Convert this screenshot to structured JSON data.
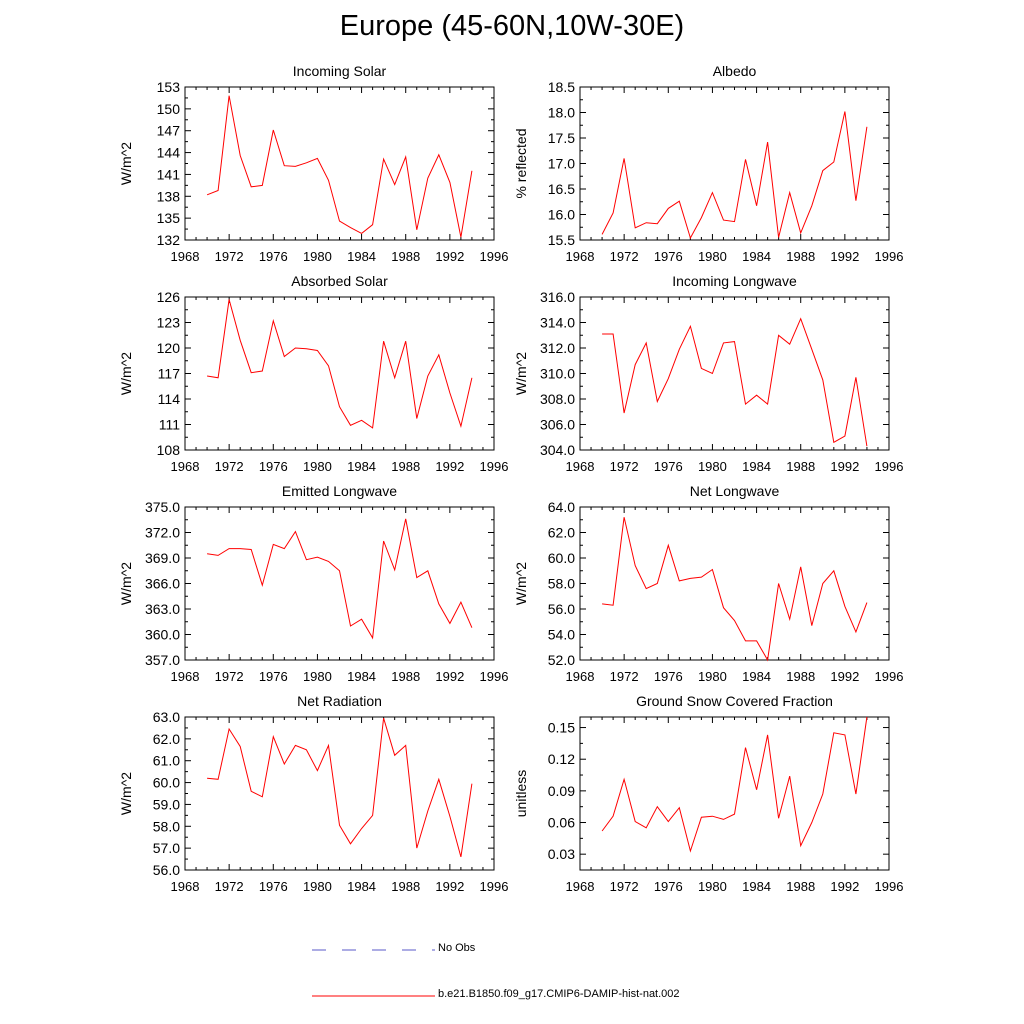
{
  "page_title": "Europe (45-60N,10W-30E)",
  "legend": {
    "obs_label": "No Obs",
    "obs_color": "#5a5ac8",
    "model_label": "b.e21.B1850.f09_g17.CMIP6-DAMIP-hist-nat.002",
    "model_color": "#ff0000"
  },
  "chart_data": [
    {
      "type": "line",
      "title": "Incoming Solar",
      "xlabel": "",
      "ylabel": "W/m^2",
      "xlim": [
        1968,
        1996
      ],
      "ylim": [
        132,
        153
      ],
      "x_ticks": [
        "1968",
        "1972",
        "1976",
        "1980",
        "1984",
        "1988",
        "1992",
        "1996"
      ],
      "y_ticks": [
        "132",
        "135",
        "138",
        "141",
        "144",
        "147",
        "150",
        "153"
      ],
      "x": [
        1970,
        1971,
        1972,
        1973,
        1974,
        1975,
        1976,
        1977,
        1978,
        1979,
        1980,
        1981,
        1982,
        1983,
        1984,
        1985,
        1986,
        1987,
        1988,
        1989,
        1990,
        1991,
        1992,
        1993,
        1994
      ],
      "values": [
        138.2,
        138.8,
        151.8,
        143.6,
        139.3,
        139.5,
        147.1,
        142.2,
        142.1,
        142.6,
        143.2,
        140.2,
        134.6,
        133.7,
        132.9,
        134.1,
        143.1,
        139.6,
        143.4,
        133.4,
        140.5,
        143.7,
        139.9,
        132.4,
        141.5
      ]
    },
    {
      "type": "line",
      "title": "Albedo",
      "xlabel": "",
      "ylabel": "% reflected",
      "xlim": [
        1968,
        1996
      ],
      "ylim": [
        15.5,
        18.5
      ],
      "x_ticks": [
        "1968",
        "1972",
        "1976",
        "1980",
        "1984",
        "1988",
        "1992",
        "1996"
      ],
      "y_ticks": [
        "15.5",
        "16.0",
        "16.5",
        "17.0",
        "17.5",
        "18.0",
        "18.5"
      ],
      "x": [
        1970,
        1971,
        1972,
        1973,
        1974,
        1975,
        1976,
        1977,
        1978,
        1979,
        1980,
        1981,
        1982,
        1983,
        1984,
        1985,
        1986,
        1987,
        1988,
        1989,
        1990,
        1991,
        1992,
        1993,
        1994
      ],
      "values": [
        15.61,
        16.03,
        17.1,
        15.74,
        15.84,
        15.82,
        16.12,
        16.26,
        15.54,
        15.94,
        16.43,
        15.89,
        15.86,
        17.08,
        16.17,
        17.42,
        15.55,
        16.43,
        15.64,
        16.17,
        16.86,
        17.03,
        18.02,
        16.27,
        17.72
      ]
    },
    {
      "type": "line",
      "title": "Absorbed Solar",
      "xlabel": "",
      "ylabel": "W/m^2",
      "xlim": [
        1968,
        1996
      ],
      "ylim": [
        108,
        126
      ],
      "x_ticks": [
        "1968",
        "1972",
        "1976",
        "1980",
        "1984",
        "1988",
        "1992",
        "1996"
      ],
      "y_ticks": [
        "108",
        "111",
        "114",
        "117",
        "120",
        "123",
        "126"
      ],
      "x": [
        1970,
        1971,
        1972,
        1973,
        1974,
        1975,
        1976,
        1977,
        1978,
        1979,
        1980,
        1981,
        1982,
        1983,
        1984,
        1985,
        1986,
        1987,
        1988,
        1989,
        1990,
        1991,
        1992,
        1993,
        1994
      ],
      "values": [
        116.7,
        116.5,
        125.7,
        120.9,
        117.1,
        117.3,
        123.2,
        119.0,
        120.0,
        119.9,
        119.7,
        117.9,
        113.1,
        110.9,
        111.5,
        110.6,
        120.8,
        116.5,
        120.8,
        111.7,
        116.7,
        119.2,
        114.7,
        110.8,
        116.5
      ]
    },
    {
      "type": "line",
      "title": "Incoming Longwave",
      "xlabel": "",
      "ylabel": "W/m^2",
      "xlim": [
        1968,
        1996
      ],
      "ylim": [
        304.0,
        316.0
      ],
      "x_ticks": [
        "1968",
        "1972",
        "1976",
        "1980",
        "1984",
        "1988",
        "1992",
        "1996"
      ],
      "y_ticks": [
        "304.0",
        "306.0",
        "308.0",
        "310.0",
        "312.0",
        "314.0",
        "316.0"
      ],
      "x": [
        1970,
        1971,
        1972,
        1973,
        1974,
        1975,
        1976,
        1977,
        1978,
        1979,
        1980,
        1981,
        1982,
        1983,
        1984,
        1985,
        1986,
        1987,
        1988,
        1989,
        1990,
        1991,
        1992,
        1993,
        1994
      ],
      "values": [
        313.1,
        313.1,
        306.9,
        310.7,
        312.4,
        307.8,
        309.6,
        311.9,
        313.7,
        310.4,
        310.0,
        312.4,
        312.5,
        307.6,
        308.3,
        307.6,
        313.0,
        312.3,
        314.3,
        311.9,
        309.5,
        304.6,
        305.1,
        309.7,
        304.3
      ]
    },
    {
      "type": "line",
      "title": "Emitted Longwave",
      "xlabel": "",
      "ylabel": "W/m^2",
      "xlim": [
        1968,
        1996
      ],
      "ylim": [
        357.0,
        375.0
      ],
      "x_ticks": [
        "1968",
        "1972",
        "1976",
        "1980",
        "1984",
        "1988",
        "1992",
        "1996"
      ],
      "y_ticks": [
        "357.0",
        "360.0",
        "363.0",
        "366.0",
        "369.0",
        "372.0",
        "375.0"
      ],
      "x": [
        1970,
        1971,
        1972,
        1973,
        1974,
        1975,
        1976,
        1977,
        1978,
        1979,
        1980,
        1981,
        1982,
        1983,
        1984,
        1985,
        1986,
        1987,
        1988,
        1989,
        1990,
        1991,
        1992,
        1993,
        1994
      ],
      "values": [
        369.5,
        369.3,
        370.1,
        370.1,
        370.0,
        365.8,
        370.6,
        370.1,
        372.1,
        368.8,
        369.1,
        368.6,
        367.5,
        361.0,
        361.8,
        359.6,
        371.0,
        367.6,
        373.6,
        366.7,
        367.5,
        363.6,
        361.3,
        363.8,
        360.8
      ]
    },
    {
      "type": "line",
      "title": "Net Longwave",
      "xlabel": "",
      "ylabel": "W/m^2",
      "xlim": [
        1968,
        1996
      ],
      "ylim": [
        52.0,
        64.0
      ],
      "x_ticks": [
        "1968",
        "1972",
        "1976",
        "1980",
        "1984",
        "1988",
        "1992",
        "1996"
      ],
      "y_ticks": [
        "52.0",
        "54.0",
        "56.0",
        "58.0",
        "60.0",
        "62.0",
        "64.0"
      ],
      "x": [
        1970,
        1971,
        1972,
        1973,
        1974,
        1975,
        1976,
        1977,
        1978,
        1979,
        1980,
        1981,
        1982,
        1983,
        1984,
        1985,
        1986,
        1987,
        1988,
        1989,
        1990,
        1991,
        1992,
        1993,
        1994
      ],
      "values": [
        56.4,
        56.3,
        63.2,
        59.4,
        57.6,
        58.0,
        61.0,
        58.2,
        58.4,
        58.5,
        59.1,
        56.1,
        55.1,
        53.5,
        53.5,
        52.0,
        58.0,
        55.2,
        59.3,
        54.7,
        58.0,
        59.0,
        56.2,
        54.2,
        56.5
      ]
    },
    {
      "type": "line",
      "title": "Net Radiation",
      "xlabel": "",
      "ylabel": "W/m^2",
      "xlim": [
        1968,
        1996
      ],
      "ylim": [
        56.0,
        63.0
      ],
      "x_ticks": [
        "1968",
        "1972",
        "1976",
        "1980",
        "1984",
        "1988",
        "1992",
        "1996"
      ],
      "y_ticks": [
        "56.0",
        "57.0",
        "58.0",
        "59.0",
        "60.0",
        "61.0",
        "62.0",
        "63.0"
      ],
      "x": [
        1970,
        1971,
        1972,
        1973,
        1974,
        1975,
        1976,
        1977,
        1978,
        1979,
        1980,
        1981,
        1982,
        1983,
        1984,
        1985,
        1986,
        1987,
        1988,
        1989,
        1990,
        1991,
        1992,
        1993,
        1994
      ],
      "values": [
        60.2,
        60.15,
        62.45,
        61.65,
        59.6,
        59.35,
        62.1,
        60.85,
        61.7,
        61.5,
        60.55,
        61.7,
        58.05,
        57.2,
        57.9,
        58.5,
        62.95,
        61.25,
        61.7,
        57.0,
        58.7,
        60.15,
        58.45,
        56.6,
        59.95
      ]
    },
    {
      "type": "line",
      "title": "Ground Snow Covered Fraction",
      "xlabel": "",
      "ylabel": "unitless",
      "xlim": [
        1968,
        1996
      ],
      "ylim": [
        0.015,
        0.16
      ],
      "x_ticks": [
        "1968",
        "1972",
        "1976",
        "1980",
        "1984",
        "1988",
        "1992",
        "1996"
      ],
      "y_ticks": [
        "0.03",
        "0.06",
        "0.09",
        "0.12",
        "0.15"
      ],
      "y_tick_values": [
        0.03,
        0.06,
        0.09,
        0.12,
        0.15
      ],
      "x": [
        1970,
        1971,
        1972,
        1973,
        1974,
        1975,
        1976,
        1977,
        1978,
        1979,
        1980,
        1981,
        1982,
        1983,
        1984,
        1985,
        1986,
        1987,
        1988,
        1989,
        1990,
        1991,
        1992,
        1993,
        1994
      ],
      "values": [
        0.052,
        0.066,
        0.101,
        0.061,
        0.055,
        0.075,
        0.061,
        0.074,
        0.033,
        0.065,
        0.066,
        0.063,
        0.068,
        0.131,
        0.091,
        0.143,
        0.064,
        0.104,
        0.038,
        0.06,
        0.087,
        0.145,
        0.143,
        0.087,
        0.16
      ]
    }
  ]
}
